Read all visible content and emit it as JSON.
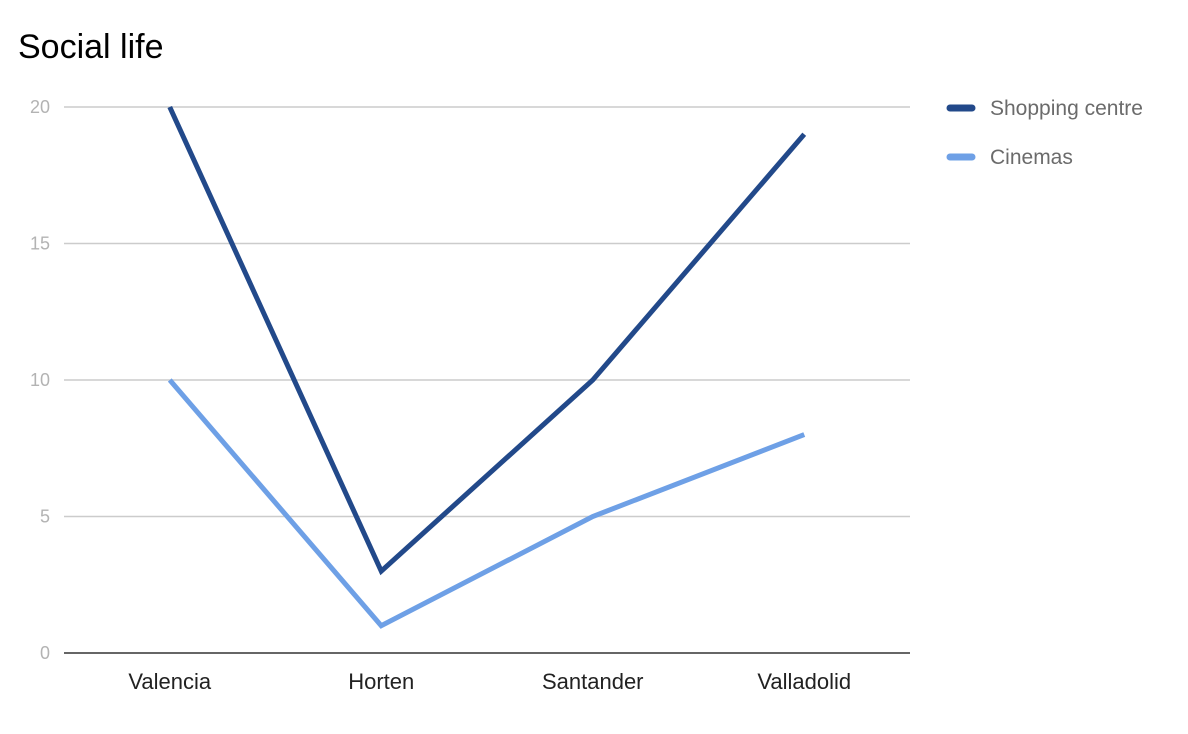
{
  "chart_data": {
    "type": "line",
    "title": "Social life",
    "xlabel": "",
    "ylabel": "",
    "categories": [
      "Valencia",
      "Horten",
      "Santander",
      "Valladolid"
    ],
    "series": [
      {
        "name": "Shopping centre",
        "color": "#22498a",
        "values": [
          20,
          3,
          10,
          19
        ]
      },
      {
        "name": "Cinemas",
        "color": "#6ea0e6",
        "values": [
          10,
          1,
          5,
          8
        ]
      }
    ],
    "ylim": [
      0,
      20
    ],
    "yticks": [
      0,
      5,
      10,
      15,
      20
    ],
    "grid": true,
    "legend": "right"
  }
}
